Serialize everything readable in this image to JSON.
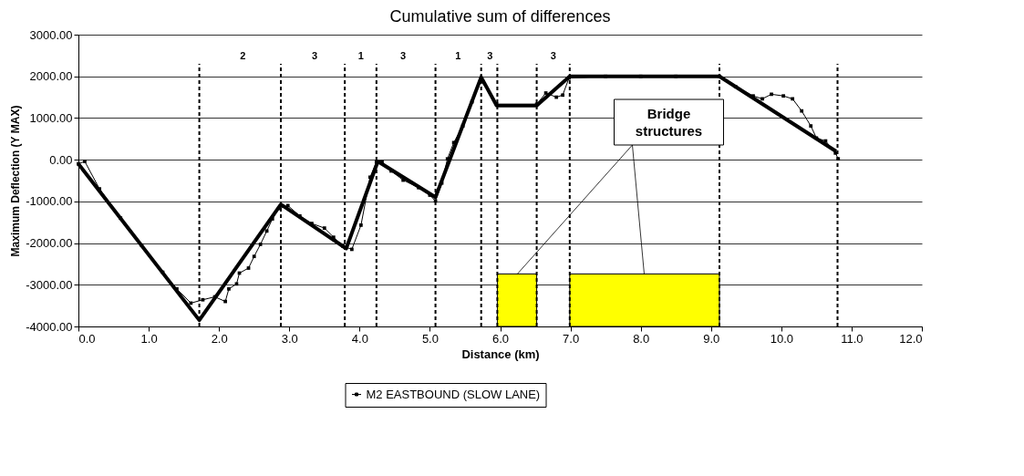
{
  "chart_data": {
    "type": "line",
    "title": "Cumulative sum of differences",
    "xlabel": "Distance (km)",
    "ylabel": "Maximum Deflection (Y MAX)",
    "xlim": [
      0,
      12
    ],
    "ylim": [
      -4000,
      3000
    ],
    "xticks": [
      {
        "value": 0,
        "label": "0.0"
      },
      {
        "value": 1,
        "label": "1.0"
      },
      {
        "value": 2,
        "label": "2.0"
      },
      {
        "value": 3,
        "label": "3.0"
      },
      {
        "value": 4,
        "label": "4.0"
      },
      {
        "value": 5,
        "label": "5.0"
      },
      {
        "value": 6,
        "label": "6.0"
      },
      {
        "value": 7,
        "label": "7.0"
      },
      {
        "value": 8,
        "label": "8.0"
      },
      {
        "value": 9,
        "label": "9.0"
      },
      {
        "value": 10,
        "label": "10.0"
      },
      {
        "value": 11,
        "label": "11.0"
      },
      {
        "value": 12,
        "label": "12.0"
      }
    ],
    "yticks": [
      {
        "value": -4000,
        "label": "-4000.00"
      },
      {
        "value": -3000,
        "label": "-3000.00"
      },
      {
        "value": -2000,
        "label": "-2000.00"
      },
      {
        "value": -1000,
        "label": "-1000.00"
      },
      {
        "value": 0,
        "label": "0.00"
      },
      {
        "value": 1000,
        "label": "1000.00"
      },
      {
        "value": 2000,
        "label": "2000.00"
      },
      {
        "value": 3000,
        "label": "3000.00"
      }
    ],
    "grid": "y",
    "legend": "bottom",
    "series": [
      {
        "name": "M2 EASTBOUND (SLOW LANE)",
        "color": "#000000",
        "type": "line",
        "marker": "square",
        "x": [
          0.0,
          0.09,
          0.3,
          0.6,
          0.9,
          1.2,
          1.4,
          1.6,
          1.77,
          1.94,
          2.09,
          2.14,
          2.25,
          2.29,
          2.42,
          2.5,
          2.59,
          2.68,
          2.76,
          2.85,
          2.98,
          3.15,
          3.32,
          3.5,
          3.63,
          3.76,
          3.89,
          4.02,
          4.15,
          4.24,
          4.32,
          4.45,
          4.62,
          4.84,
          5.0,
          5.08,
          5.17,
          5.25,
          5.34,
          5.47,
          5.6,
          5.73,
          5.95,
          6.52,
          6.65,
          6.8,
          6.89,
          6.98,
          7.5,
          8.0,
          8.5,
          9.12,
          9.35,
          9.6,
          9.73,
          9.86,
          10.03,
          10.16,
          10.29,
          10.42,
          10.5,
          10.63,
          10.77,
          10.81
        ],
        "values": [
          -100,
          -40,
          -700,
          -1400,
          -2050,
          -2700,
          -3100,
          -3440,
          -3360,
          -3290,
          -3400,
          -3100,
          -2980,
          -2720,
          -2600,
          -2320,
          -2030,
          -1710,
          -1420,
          -1170,
          -1100,
          -1350,
          -1530,
          -1640,
          -1860,
          -2070,
          -2150,
          -1570,
          -420,
          -50,
          -50,
          -270,
          -490,
          -670,
          -850,
          -990,
          -560,
          20,
          410,
          810,
          1390,
          1890,
          1330,
          1330,
          1600,
          1500,
          1550,
          1960,
          2000,
          2000,
          2000,
          2000,
          1750,
          1530,
          1460,
          1570,
          1530,
          1460,
          1170,
          810,
          520,
          450,
          160,
          20
        ]
      },
      {
        "color": "#000000",
        "type": "line",
        "marker": "none",
        "x": [
          0,
          1.72,
          2.88,
          3.81,
          4.26,
          5.08,
          5.73,
          5.95,
          6.52,
          6.99,
          9.12,
          10.78
        ],
        "values": [
          -100,
          -3850,
          -1070,
          -2130,
          -40,
          -900,
          1980,
          1300,
          1300,
          2000,
          2000,
          200
        ]
      }
    ],
    "ref_lines": [
      {
        "axis": "x",
        "value": 1.72,
        "line_style": "dashed"
      },
      {
        "axis": "x",
        "value": 2.88,
        "line_style": "dashed"
      },
      {
        "axis": "x",
        "value": 3.79,
        "line_style": "dashed"
      },
      {
        "axis": "x",
        "value": 4.24,
        "line_style": "dashed"
      },
      {
        "axis": "x",
        "value": 5.08,
        "line_style": "dashed"
      },
      {
        "axis": "x",
        "value": 5.73,
        "line_style": "dashed"
      },
      {
        "axis": "x",
        "value": 5.96,
        "line_style": "dashed"
      },
      {
        "axis": "x",
        "value": 6.52,
        "line_style": "dashed"
      },
      {
        "axis": "x",
        "value": 6.99,
        "line_style": "dashed"
      },
      {
        "axis": "x",
        "value": 9.12,
        "line_style": "dashed"
      },
      {
        "axis": "x",
        "value": 10.8,
        "line_style": "dashed"
      }
    ],
    "bands": [
      {
        "axis": "x",
        "from": 5.96,
        "to": 6.52,
        "color": "#ffff00"
      },
      {
        "axis": "x",
        "from": 6.99,
        "to": 9.12,
        "color": "#ffff00"
      }
    ],
    "annotations": [
      "2",
      "3",
      "1",
      "3",
      "1",
      "3",
      "3",
      {
        "text": "Bridge structures",
        "x": 8.05,
        "y": -2750
      }
    ]
  }
}
